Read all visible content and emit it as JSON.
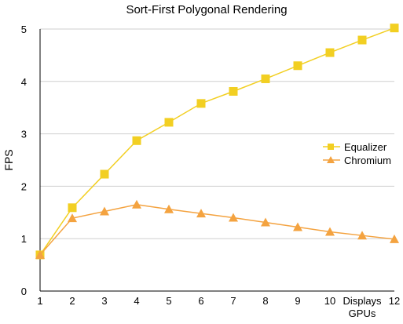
{
  "chart_data": {
    "type": "line",
    "title": "Sort-First Polygonal Rendering",
    "ylabel": "FPS",
    "xlabel": "",
    "x_tick_labels": [
      "1",
      "2",
      "3",
      "4",
      "5",
      "6",
      "7",
      "8",
      "9",
      "10",
      "Displays\nGPUs",
      "12"
    ],
    "ylim": [
      0,
      5
    ],
    "y_ticks": [
      0,
      1,
      2,
      3,
      4,
      5
    ],
    "grid": "horizontal",
    "legend_position": "right",
    "series": [
      {
        "name": "Equalizer",
        "marker": "square",
        "color": "#f2cf22",
        "x": [
          1,
          2,
          3,
          4,
          5,
          6,
          7,
          8,
          9,
          10,
          11,
          12
        ],
        "values": [
          0.69,
          1.59,
          2.23,
          2.87,
          3.22,
          3.58,
          3.81,
          4.05,
          4.3,
          4.55,
          4.79,
          5.02
        ]
      },
      {
        "name": "Chromium",
        "marker": "triangle",
        "color": "#f4a340",
        "x": [
          1,
          2,
          3,
          4,
          5,
          6,
          7,
          8,
          9,
          10,
          11,
          12
        ],
        "values": [
          0.69,
          1.39,
          1.52,
          1.65,
          1.56,
          1.48,
          1.4,
          1.31,
          1.22,
          1.13,
          1.06,
          0.99
        ]
      }
    ]
  }
}
